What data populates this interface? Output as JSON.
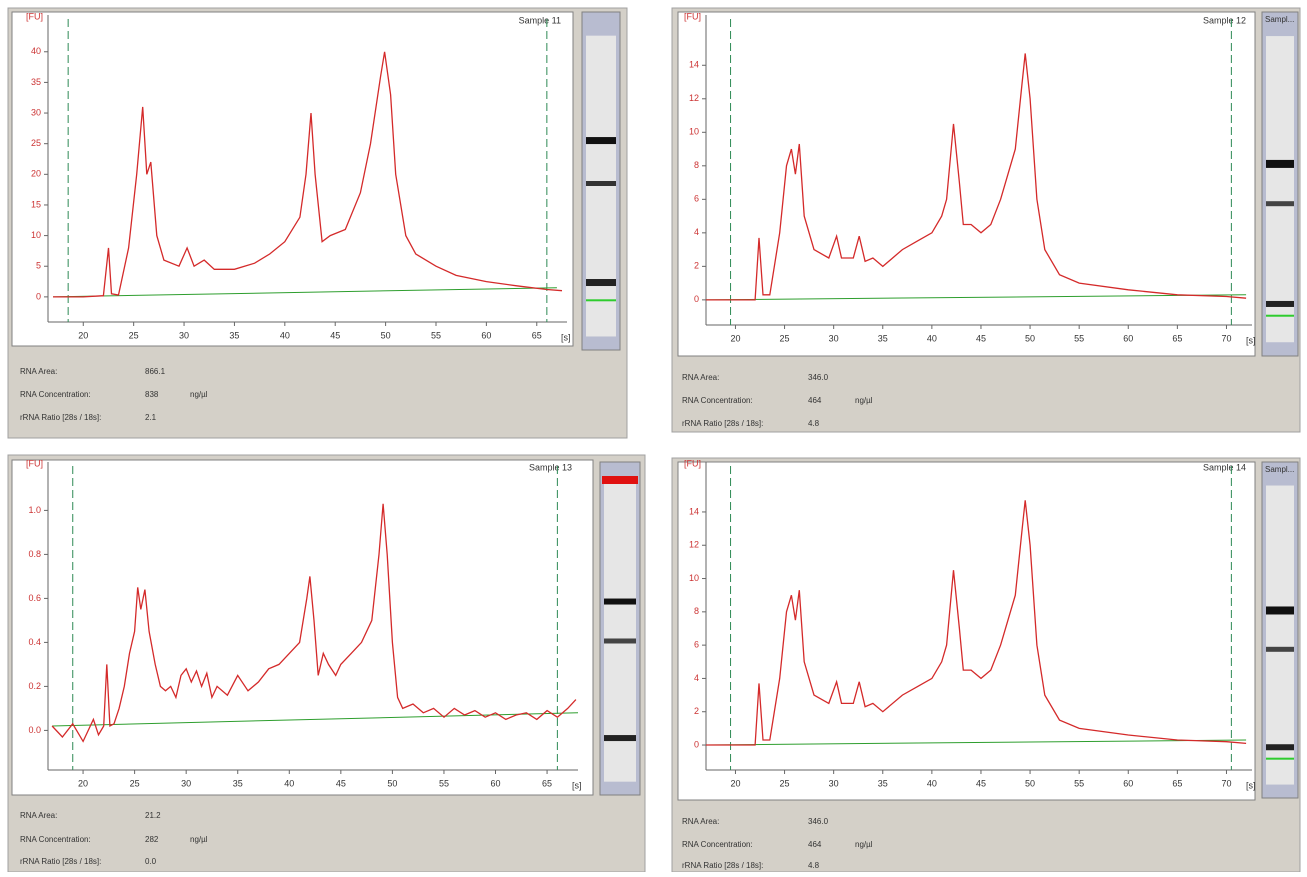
{
  "chart_data": [
    {
      "type": "line",
      "title": "Sample 11",
      "y_label": "[FU]",
      "x_label": "[s]",
      "xlim": [
        16.5,
        68
      ],
      "ylim": [
        -4.1,
        46
      ],
      "xticks": [
        20,
        25,
        30,
        35,
        40,
        45,
        50,
        55,
        60,
        65
      ],
      "yticks": [
        0,
        5,
        10,
        15,
        20,
        25,
        30,
        35,
        40
      ],
      "marker_lines": [
        18.5,
        66
      ],
      "series": [
        {
          "color": "#d42a2a",
          "x": [
            17,
            20,
            22,
            22.5,
            22.8,
            23.5,
            24.5,
            25.3,
            25.9,
            26.3,
            26.7,
            27.3,
            28,
            29.5,
            30.3,
            31,
            32,
            33,
            35,
            37,
            38.5,
            40,
            41.5,
            42.1,
            42.6,
            43,
            43.7,
            44.5,
            46,
            47.5,
            48.5,
            49.5,
            49.9,
            50.5,
            51,
            52,
            53,
            55,
            57,
            60,
            63,
            66,
            67.5
          ],
          "values": [
            0,
            0,
            0.2,
            8,
            0.5,
            0.3,
            8,
            20,
            31,
            20,
            22,
            10,
            6,
            5,
            8,
            5,
            6,
            4.5,
            4.5,
            5.5,
            7,
            9,
            13,
            20,
            30,
            20,
            9,
            10,
            11,
            17,
            25,
            36,
            40,
            33,
            20,
            10,
            7,
            5,
            3.5,
            2.5,
            1.8,
            1.2,
            1
          ]
        },
        {
          "color": "#2e9e2e",
          "x": [
            17,
            67
          ],
          "values": [
            0,
            1.5
          ]
        }
      ],
      "info": [
        {
          "label": "RNA Area:",
          "value": "866.1"
        },
        {
          "label": "RNA Concentration:",
          "value": "838",
          "unit": "ng/µl"
        },
        {
          "label": "rRNA Ratio [28s / 18s]:",
          "value": "2.1"
        }
      ]
    },
    {
      "type": "line",
      "title": "Sample 12",
      "y_label": "[FU]",
      "x_label": "[s]",
      "lane_label": "Sampl...",
      "xlim": [
        17,
        72.6
      ],
      "ylim": [
        -1.5,
        17
      ],
      "xticks": [
        20,
        25,
        30,
        35,
        40,
        45,
        50,
        55,
        60,
        65,
        70
      ],
      "yticks": [
        0,
        2,
        4,
        6,
        8,
        10,
        12,
        14
      ],
      "marker_lines": [
        19.5,
        70.5
      ],
      "series": [
        {
          "color": "#d42a2a",
          "x": [
            17,
            22,
            22.4,
            22.8,
            23.5,
            24.5,
            25.2,
            25.7,
            26.1,
            26.5,
            27,
            28,
            29.5,
            30.3,
            30.8,
            32,
            32.6,
            33.2,
            34,
            35,
            37,
            38.5,
            40,
            41,
            41.5,
            42.2,
            42.8,
            43.2,
            44,
            45,
            46,
            47,
            48.5,
            49.2,
            49.5,
            50,
            50.7,
            51.5,
            53,
            55,
            60,
            65,
            70,
            72
          ],
          "values": [
            0,
            0,
            3.7,
            0.3,
            0.3,
            4,
            8,
            9,
            7.5,
            9.3,
            5,
            3,
            2.5,
            3.8,
            2.5,
            2.5,
            3.8,
            2.3,
            2.5,
            2,
            3,
            3.5,
            4,
            5,
            6,
            10.5,
            7,
            4.5,
            4.5,
            4,
            4.5,
            6,
            9,
            13,
            14.7,
            12,
            6,
            3,
            1.5,
            1,
            0.6,
            0.3,
            0.2,
            0.1
          ]
        },
        {
          "color": "#2e9e2e",
          "x": [
            17,
            72
          ],
          "values": [
            0,
            0.3
          ]
        }
      ],
      "info": [
        {
          "label": "RNA Area:",
          "value": "346.0"
        },
        {
          "label": "RNA Concentration:",
          "value": "464",
          "unit": "ng/µl"
        },
        {
          "label": "rRNA Ratio [28s / 18s]:",
          "value": "4.8"
        }
      ]
    },
    {
      "type": "line",
      "title": "Sample 13",
      "y_label": "[FU]",
      "x_label": "[s]",
      "xlim": [
        16.6,
        68
      ],
      "ylim": [
        -0.18,
        1.22
      ],
      "xticks": [
        20,
        25,
        30,
        35,
        40,
        45,
        50,
        55,
        60,
        65
      ],
      "yticks": [
        {
          "value": 0,
          "label": "0.0"
        },
        0.2,
        0.4,
        0.6,
        0.8,
        {
          "value": 1,
          "label": "1.0"
        }
      ],
      "marker_lines": [
        19,
        66
      ],
      "series": [
        {
          "color": "#d42a2a",
          "x": [
            17,
            18,
            19,
            20,
            21,
            21.5,
            22,
            22.3,
            22.6,
            23,
            23.5,
            24,
            24.5,
            25,
            25.3,
            25.6,
            26,
            26.4,
            27,
            27.5,
            28,
            28.5,
            29,
            29.5,
            30,
            30.5,
            31,
            31.5,
            32,
            32.5,
            33,
            34,
            35,
            36,
            37,
            38,
            39,
            40,
            41,
            41.7,
            42,
            42.4,
            42.8,
            43.3,
            43.8,
            44.5,
            45,
            46,
            47,
            48,
            48.7,
            49.1,
            49.5,
            50,
            50.5,
            51,
            52,
            53,
            54,
            55,
            56,
            57,
            58,
            59,
            60,
            61,
            62,
            63,
            64,
            65,
            66,
            67,
            67.8
          ],
          "values": [
            0.02,
            -0.03,
            0.03,
            -0.05,
            0.05,
            -0.02,
            0.02,
            0.3,
            0.02,
            0.03,
            0.1,
            0.2,
            0.35,
            0.45,
            0.65,
            0.55,
            0.64,
            0.45,
            0.3,
            0.2,
            0.18,
            0.2,
            0.15,
            0.25,
            0.28,
            0.22,
            0.27,
            0.2,
            0.26,
            0.15,
            0.2,
            0.16,
            0.25,
            0.18,
            0.22,
            0.28,
            0.3,
            0.35,
            0.4,
            0.6,
            0.7,
            0.5,
            0.25,
            0.35,
            0.3,
            0.25,
            0.3,
            0.35,
            0.4,
            0.5,
            0.8,
            1.03,
            0.8,
            0.4,
            0.15,
            0.1,
            0.12,
            0.08,
            0.1,
            0.06,
            0.1,
            0.07,
            0.09,
            0.06,
            0.08,
            0.05,
            0.07,
            0.08,
            0.05,
            0.09,
            0.06,
            0.1,
            0.14
          ]
        },
        {
          "color": "#2e9e2e",
          "x": [
            17,
            68
          ],
          "values": [
            0.02,
            0.08
          ]
        }
      ],
      "info": [
        {
          "label": "RNA Area:",
          "value": "21.2"
        },
        {
          "label": "RNA Concentration:",
          "value": "282",
          "unit": "ng/µl"
        },
        {
          "label": "rRNA Ratio [28s / 18s]:",
          "value": "0.0"
        }
      ]
    },
    {
      "type": "line",
      "title": "Sample 14",
      "y_label": "[FU]",
      "x_label": "[s]",
      "lane_label": "Sampl...",
      "xlim": [
        17,
        72.6
      ],
      "ylim": [
        -1.5,
        17
      ],
      "xticks": [
        20,
        25,
        30,
        35,
        40,
        45,
        50,
        55,
        60,
        65,
        70
      ],
      "yticks": [
        0,
        2,
        4,
        6,
        8,
        10,
        12,
        14
      ],
      "marker_lines": [
        19.5,
        70.5
      ],
      "series": [
        {
          "color": "#d42a2a",
          "x": [
            17,
            22,
            22.4,
            22.8,
            23.5,
            24.5,
            25.2,
            25.7,
            26.1,
            26.5,
            27,
            28,
            29.5,
            30.3,
            30.8,
            32,
            32.6,
            33.2,
            34,
            35,
            37,
            38.5,
            40,
            41,
            41.5,
            42.2,
            42.8,
            43.2,
            44,
            45,
            46,
            47,
            48.5,
            49.2,
            49.5,
            50,
            50.7,
            51.5,
            53,
            55,
            60,
            65,
            70,
            72
          ],
          "values": [
            0,
            0,
            3.7,
            0.3,
            0.3,
            4,
            8,
            9,
            7.5,
            9.3,
            5,
            3,
            2.5,
            3.8,
            2.5,
            2.5,
            3.8,
            2.3,
            2.5,
            2,
            3,
            3.5,
            4,
            5,
            6,
            10.5,
            7,
            4.5,
            4.5,
            4,
            4.5,
            6,
            9,
            13,
            14.7,
            12,
            6,
            3,
            1.5,
            1,
            0.6,
            0.3,
            0.2,
            0.1
          ]
        },
        {
          "color": "#2e9e2e",
          "x": [
            17,
            72
          ],
          "values": [
            0,
            0.3
          ]
        }
      ],
      "info": [
        {
          "label": "RNA Area:",
          "value": "346.0"
        },
        {
          "label": "RNA Concentration:",
          "value": "464",
          "unit": "ng/µl"
        },
        {
          "label": "rRNA Ratio [28s / 18s]:",
          "value": "4.8"
        }
      ]
    }
  ]
}
